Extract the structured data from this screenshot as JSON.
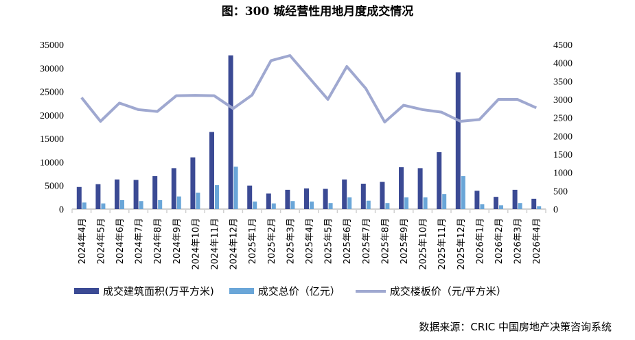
{
  "chart_data": {
    "type": "bar",
    "title": "图：300 城经营性用地月度成交情况",
    "categories": [
      "2024年4月",
      "2024年5月",
      "2024年6月",
      "2024年7月",
      "2024年8月",
      "2024年9月",
      "2024年10月",
      "2024年11月",
      "2024年12月",
      "2025年1月",
      "2025年2月",
      "2025年3月",
      "2025年4月",
      "2025年5月",
      "2025年6月",
      "2025年7月",
      "2025年8月",
      "2025年9月",
      "2025年10月",
      "2025年11月",
      "2025年12月",
      "2026年1月",
      "2026年2月",
      "2026年3月",
      "2026年4月"
    ],
    "series": [
      {
        "name": "成交建筑面积(万平方米)",
        "type": "bar",
        "axis": "left",
        "color": "#3B4A94",
        "values": [
          4700,
          5300,
          6300,
          6200,
          7000,
          8700,
          11000,
          16400,
          32700,
          5000,
          3300,
          4100,
          4400,
          4300,
          6300,
          5400,
          5800,
          8900,
          8700,
          12100,
          29100,
          3900,
          2600,
          4100,
          2200
        ]
      },
      {
        "name": "成交总价（亿元）",
        "type": "bar",
        "axis": "right",
        "color": "#6AA6D8",
        "values": [
          180,
          155,
          245,
          220,
          245,
          345,
          450,
          655,
          1160,
          205,
          155,
          220,
          205,
          165,
          320,
          230,
          165,
          320,
          320,
          410,
          900,
          130,
          105,
          165,
          75
        ]
      },
      {
        "name": "成交楼板价（元/平方米）",
        "type": "line",
        "axis": "right",
        "color": "#9FA8D0",
        "values": [
          3050,
          2400,
          2900,
          2720,
          2670,
          3100,
          3110,
          3100,
          2750,
          3120,
          4060,
          4200,
          3600,
          3000,
          3900,
          3300,
          2380,
          2840,
          2720,
          2650,
          2400,
          2450,
          3000,
          3000,
          2770
        ]
      }
    ],
    "y_left": {
      "range": [
        0,
        35000
      ],
      "ticks": [
        "0",
        "5000",
        "10000",
        "15000",
        "20000",
        "25000",
        "30000",
        "35000"
      ]
    },
    "y_right": {
      "range": [
        0,
        4500
      ],
      "ticks": [
        "0",
        "500",
        "1000",
        "1500",
        "2000",
        "2500",
        "3000",
        "3500",
        "4000",
        "4500"
      ]
    },
    "grid": false,
    "legend_position": "bottom"
  },
  "source": "数据来源：CRIC 中国房地产决策咨询系统"
}
